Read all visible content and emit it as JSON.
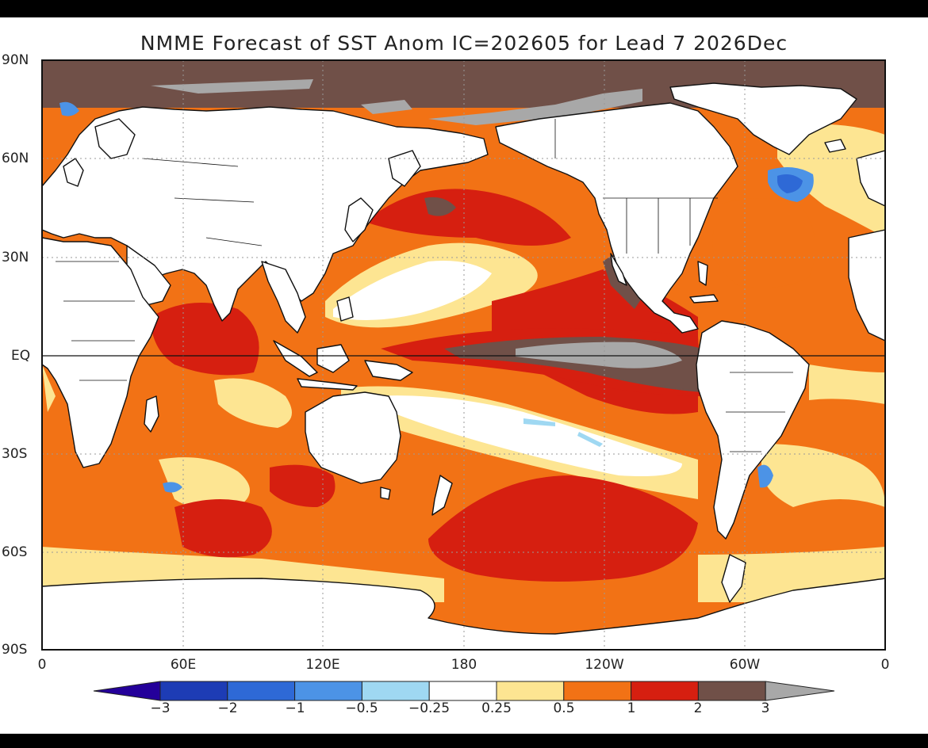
{
  "title": "NMME Forecast of SST Anom IC=202605 for Lead 7 2026Dec",
  "axes": {
    "lat_labels": [
      "90N",
      "60N",
      "30N",
      "EQ",
      "30S",
      "60S",
      "90S"
    ],
    "lon_labels": [
      "0",
      "60E",
      "120E",
      "180",
      "120W",
      "60W",
      "0"
    ]
  },
  "colorbar": {
    "labels": [
      "-3",
      "-2",
      "-1",
      "-0.5",
      "-0.25",
      "0.25",
      "0.5",
      "1",
      "2",
      "3"
    ],
    "colors": [
      "#1d3cb5",
      "#2e69d6",
      "#4c93e6",
      "#9fd8f2",
      "#ffffff",
      "#fde592",
      "#f27215",
      "#d61f10",
      "#705048"
    ],
    "extend_low_color": "#24009a",
    "extend_high_color": "#a8a8a8"
  },
  "map_colors": {
    "land": "#ffffff",
    "ocean_warm_0_5": "#f27215",
    "ocean_warm_1": "#d61f10",
    "ocean_warm_2": "#705048",
    "ocean_warm_3": "#a8a8a8",
    "ocean_mild": "#fde592",
    "ocean_cool": "#4c93e6"
  }
}
